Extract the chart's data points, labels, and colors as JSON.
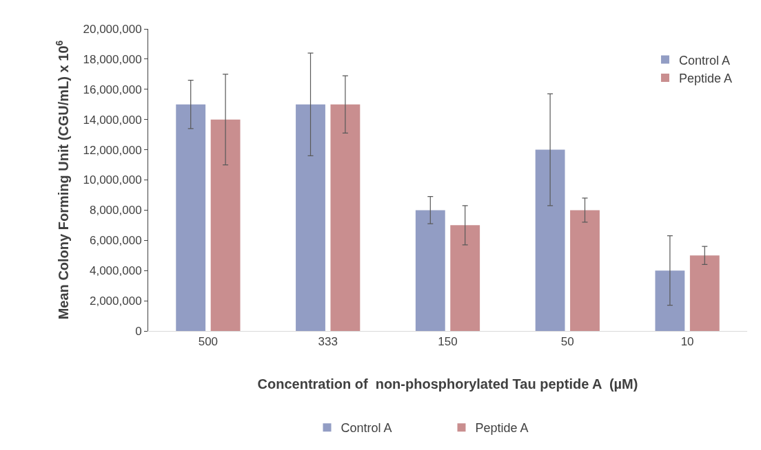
{
  "chart_data": {
    "type": "bar",
    "categories": [
      "500",
      "333",
      "150",
      "50",
      "10"
    ],
    "xlabel": "Concentration of  non-phosphorylated Tau peptide A  (µM)",
    "ylabel": "Mean Colony Forming Unit (CGU/mL) x 10$^{6}$",
    "series": [
      {
        "name": "Control A",
        "color": "#929dc4",
        "values": [
          15000000,
          15000000,
          8000000,
          12000000,
          4000000
        ],
        "errors": [
          1600000,
          3400000,
          900000,
          3700000,
          2300000
        ]
      },
      {
        "name": "Peptide A",
        "color": "#c98e8f",
        "values": [
          14000000,
          15000000,
          7000000,
          8000000,
          5000000
        ],
        "errors": [
          3000000,
          1900000,
          1300000,
          800000,
          600000
        ]
      }
    ],
    "ylim": [
      0,
      20000000
    ],
    "yticks": [
      {
        "value": 0,
        "label": "0"
      },
      {
        "value": 2000000,
        "label": "2,000,000"
      },
      {
        "value": 4000000,
        "label": "4,000,000"
      },
      {
        "value": 6000000,
        "label": "6,000,000"
      },
      {
        "value": 8000000,
        "label": "8,000,000"
      },
      {
        "value": 10000000,
        "label": "10,000,000"
      },
      {
        "value": 12000000,
        "label": "12,000,000"
      },
      {
        "value": 14000000,
        "label": "14,000,000"
      },
      {
        "value": 16000000,
        "label": "16,000,000"
      },
      {
        "value": 18000000,
        "label": "18,000,000"
      },
      {
        "value": 20000000,
        "label": "20,000,000"
      }
    ],
    "grid": false,
    "legend": [
      "top right",
      "bottom"
    ]
  }
}
